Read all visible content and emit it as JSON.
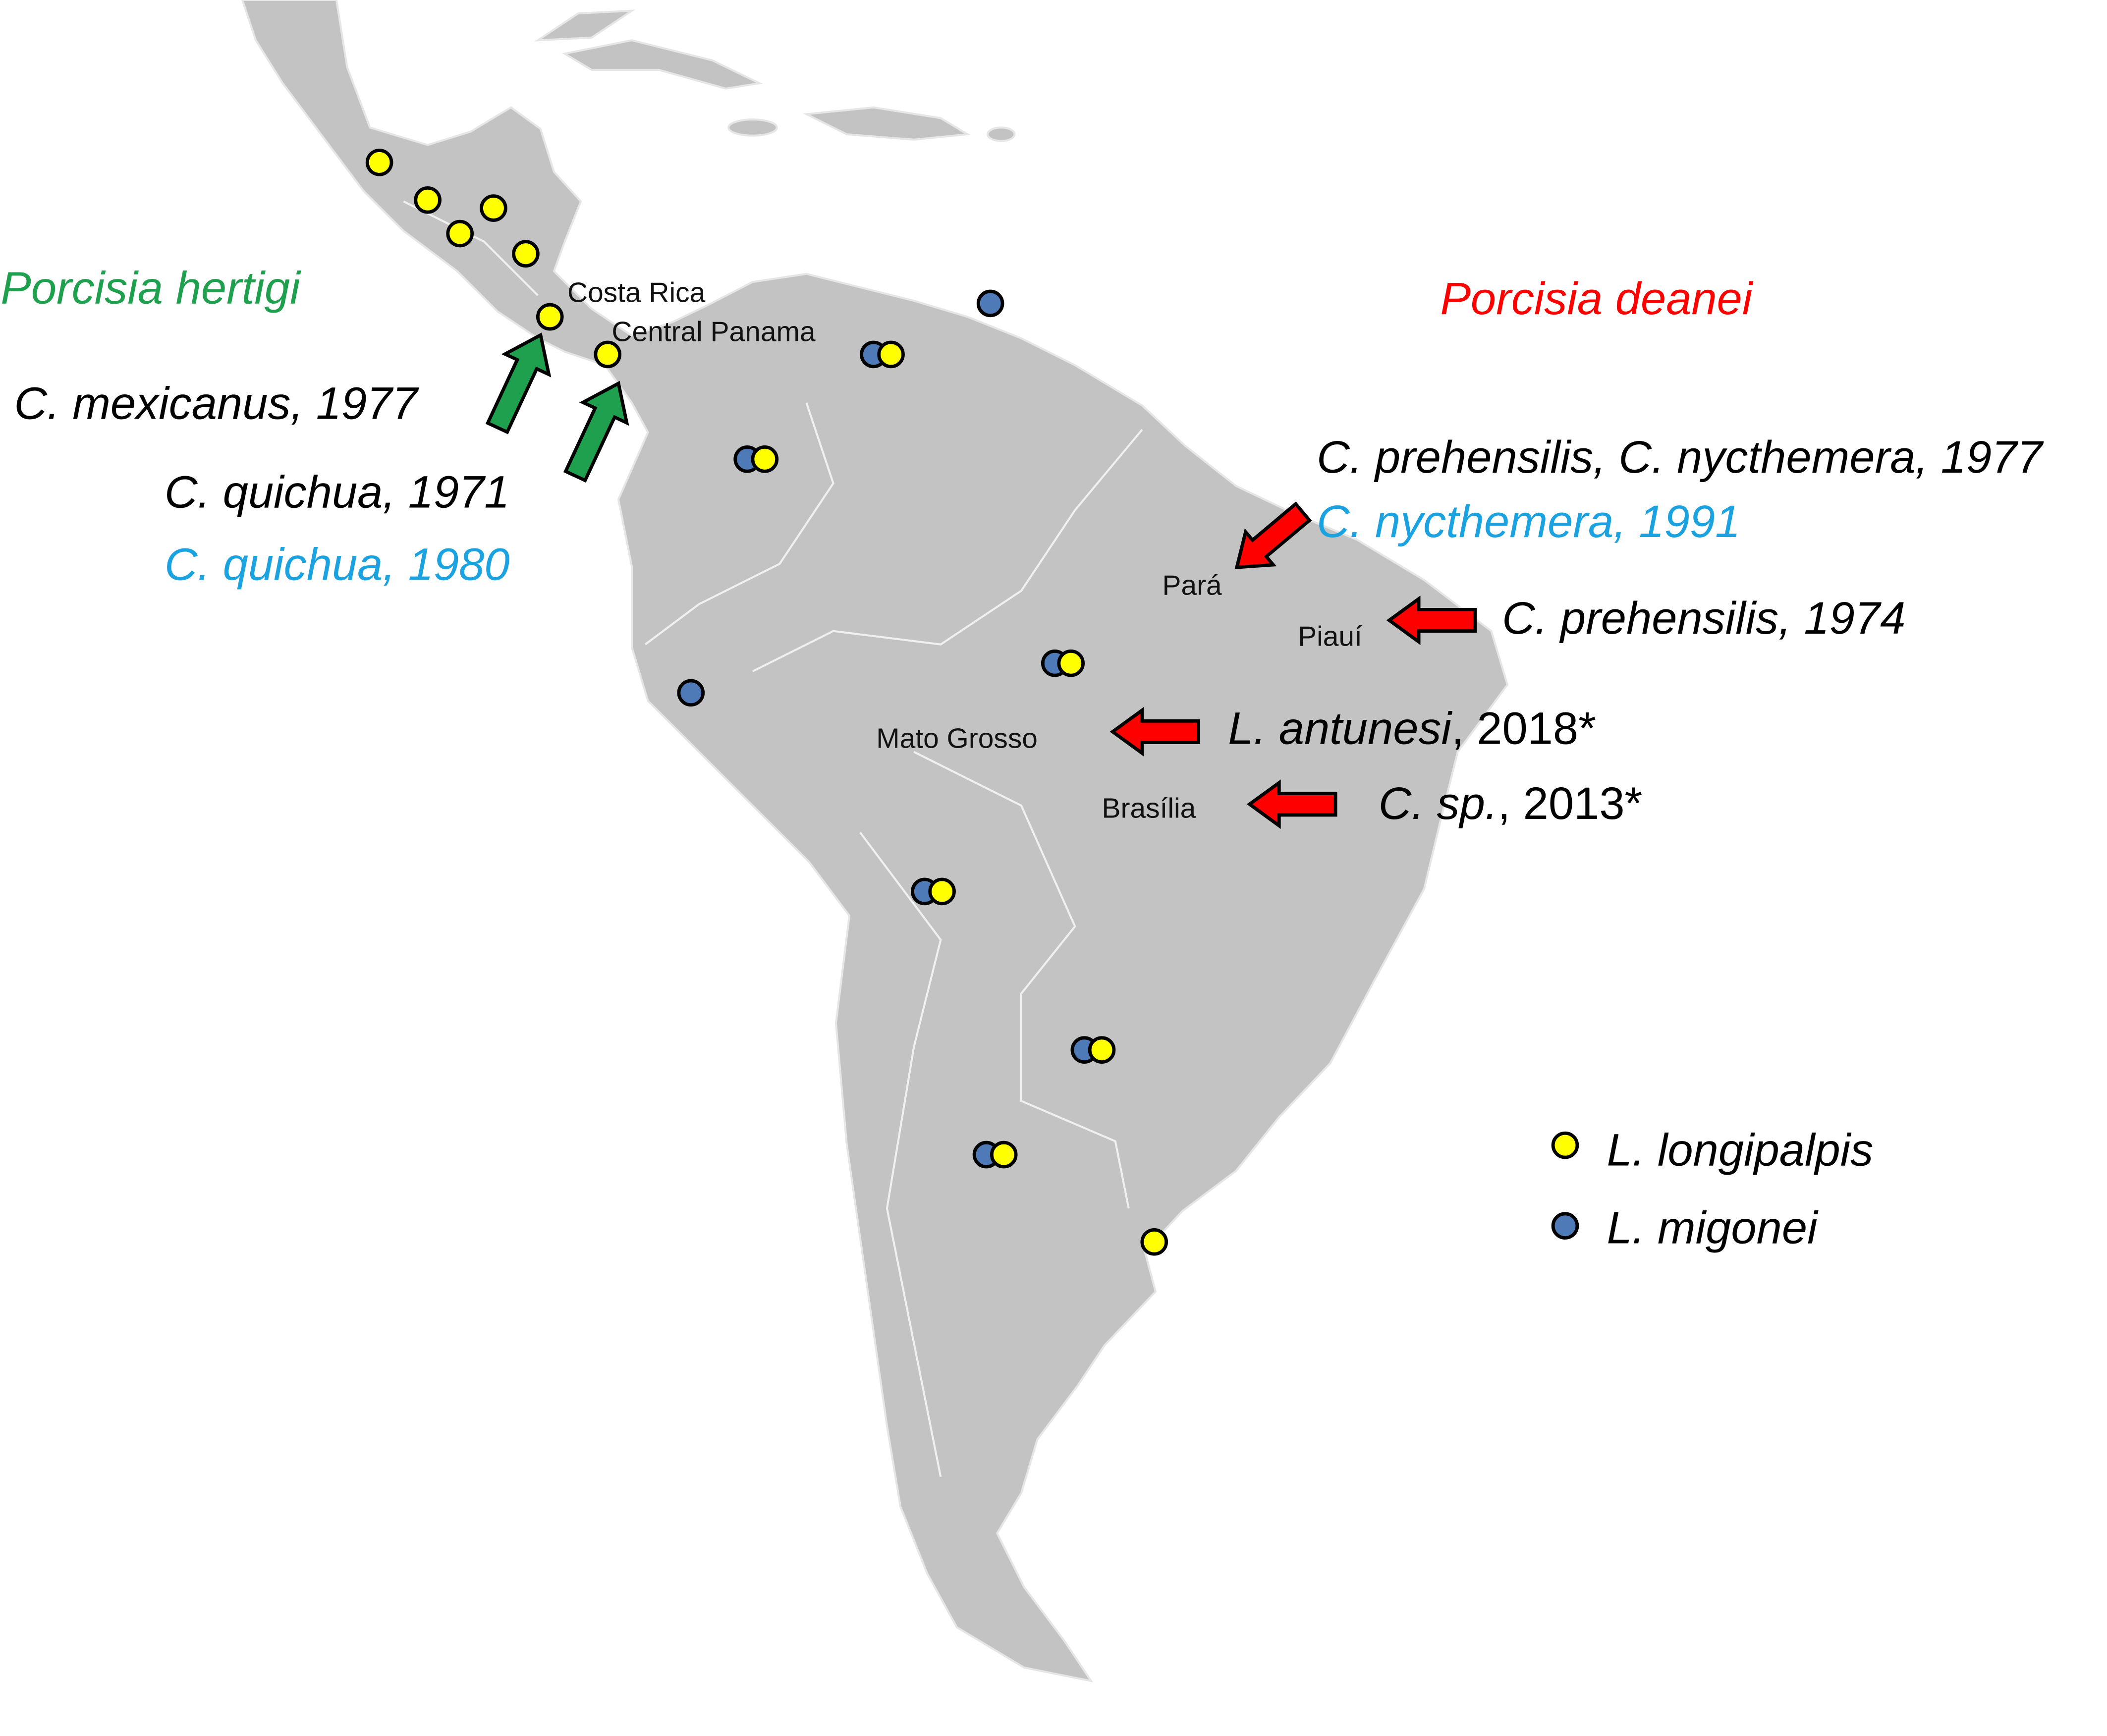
{
  "map": {
    "species": {
      "left": "Porcisia hertigi",
      "right": "Porcisia deanei"
    },
    "places": [
      "Costa Rica",
      "Central Panama",
      "Pará",
      "Piauí",
      "Mato Grosso",
      "Brasília"
    ],
    "records_left": [
      "C. mexicanus, 1977",
      "C. quichua, 1971",
      "C. quichua, 1980"
    ],
    "records_right": [
      {
        "italic": "C. prehensilis, C. nycthemera, 1977"
      },
      {
        "italic": "C. nycthemera, 1991"
      },
      {
        "italic": "C. prehensilis, 1974"
      },
      {
        "italic": "L. antunesi",
        "plain": ", 2018*"
      },
      {
        "italic": "C. sp.",
        "plain": ", 2013*"
      }
    ],
    "legend": [
      "L. longipalpis",
      "L. migonei"
    ]
  }
}
